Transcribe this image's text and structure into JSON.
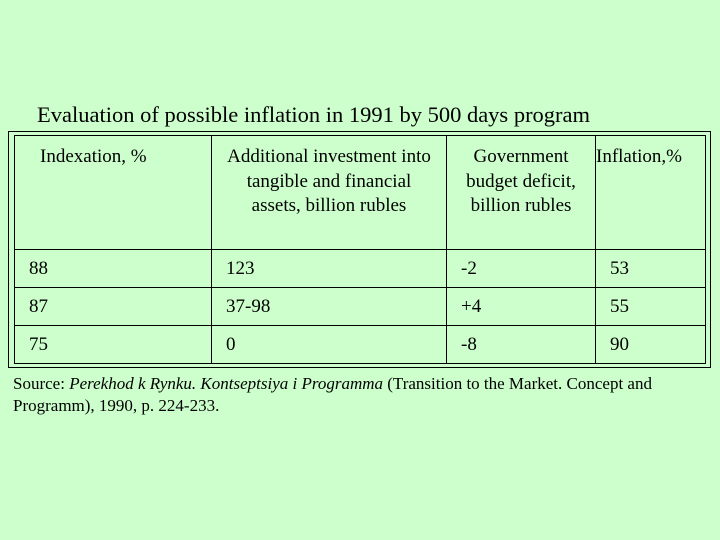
{
  "title": "Evaluation of possible inflation in 1991 by 500 days program",
  "table": {
    "headers": [
      "Indexation, %",
      "Additional investment into tangible and financial assets, billion rubles",
      "Government budget deficit, billion rubles",
      "Inflation,%"
    ],
    "rows": [
      [
        "88",
        "123",
        "-2",
        "53"
      ],
      [
        "87",
        "37-98",
        "+4",
        "55"
      ],
      [
        "75",
        "0",
        "-8",
        "90"
      ]
    ]
  },
  "source": {
    "prefix": "Source: ",
    "italic_title": "Perekhod k Rynku. Kontseptsiya i Programma",
    "suffix": " (Transition to the Market. Concept and Programm), 1990, p. 224-233."
  },
  "colors": {
    "background": "#ccffcc",
    "text": "#000000"
  }
}
